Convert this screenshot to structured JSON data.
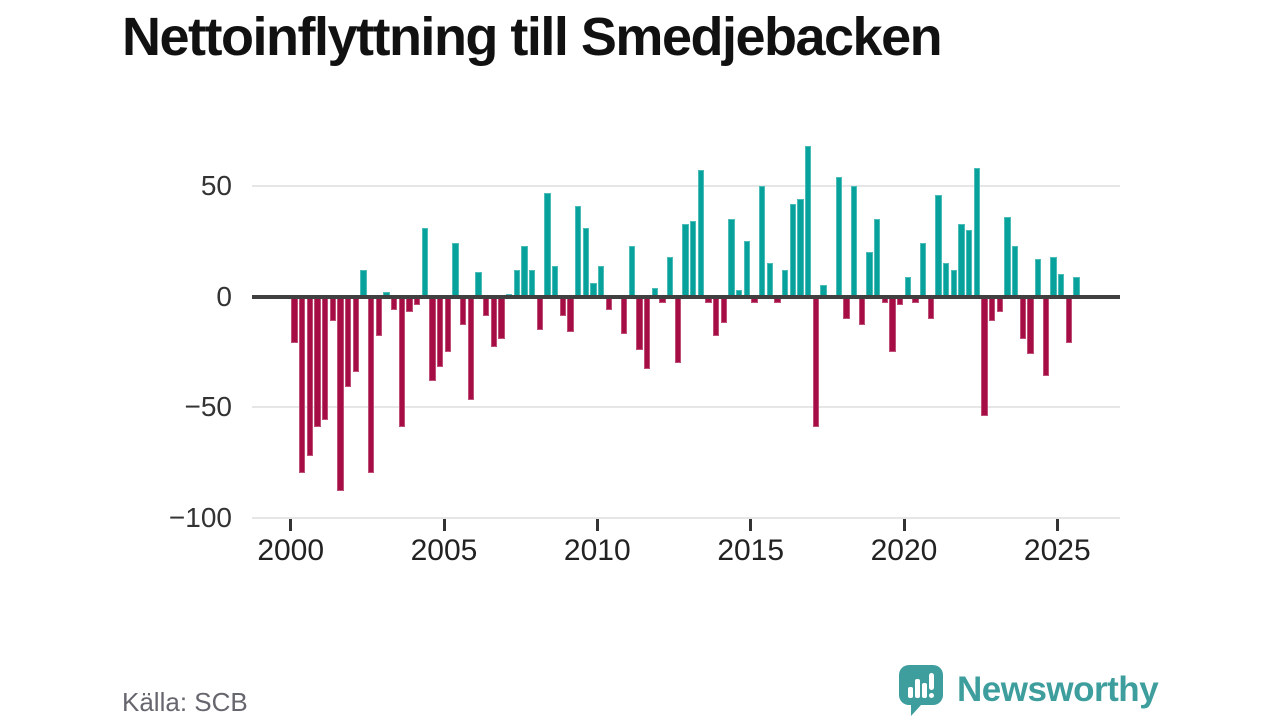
{
  "title": "Nettoinflyttning till Smedjebacken",
  "source": "Källa: SCB",
  "brand": {
    "name": "Newsworthy"
  },
  "colors": {
    "positive": "#08a29d",
    "negative": "#a60d44",
    "zero_line": "#404040",
    "gridline": "#e6e6e6",
    "brand_teal": "#3d9e9d"
  },
  "chart_data": {
    "type": "bar",
    "title": "Nettoinflyttning till Smedjebacken",
    "frequency": "quarterly",
    "start_period": "2000-Q1",
    "end_period": "2025-Q3",
    "x_tick_labels": [
      "2000",
      "2005",
      "2010",
      "2015",
      "2020",
      "2025"
    ],
    "y_ticks": [
      50,
      0,
      -50,
      -100
    ],
    "y_tick_labels": [
      "50",
      "0",
      "−50",
      "−100"
    ],
    "ylim": [
      -100,
      70
    ],
    "grid": "horizontal-only",
    "legend": "none",
    "series": [
      {
        "name": "Nettoinflyttning",
        "values": [
          -21,
          -80,
          -72,
          -59,
          -56,
          -11,
          -88,
          -41,
          -34,
          12,
          -80,
          -18,
          2,
          -6,
          -59,
          -7,
          -4,
          31,
          -38,
          -32,
          -25,
          24,
          -13,
          -47,
          11,
          -9,
          -23,
          -19,
          1,
          12,
          23,
          12,
          -15,
          47,
          14,
          -9,
          -16,
          41,
          31,
          6,
          14,
          -6,
          0,
          -17,
          23,
          -24,
          -33,
          4,
          -3,
          18,
          -30,
          33,
          34,
          57,
          -3,
          -18,
          -12,
          35,
          3,
          25,
          -3,
          50,
          15,
          -3,
          12,
          42,
          44,
          68,
          -59,
          5,
          0,
          54,
          -10,
          50,
          -13,
          20,
          35,
          -3,
          -25,
          -4,
          9,
          -3,
          24,
          -10,
          46,
          15,
          12,
          33,
          30,
          58,
          -54,
          -11,
          -7,
          36,
          23,
          -19,
          -26,
          17,
          -36,
          18,
          10,
          -21,
          9
        ]
      }
    ]
  }
}
